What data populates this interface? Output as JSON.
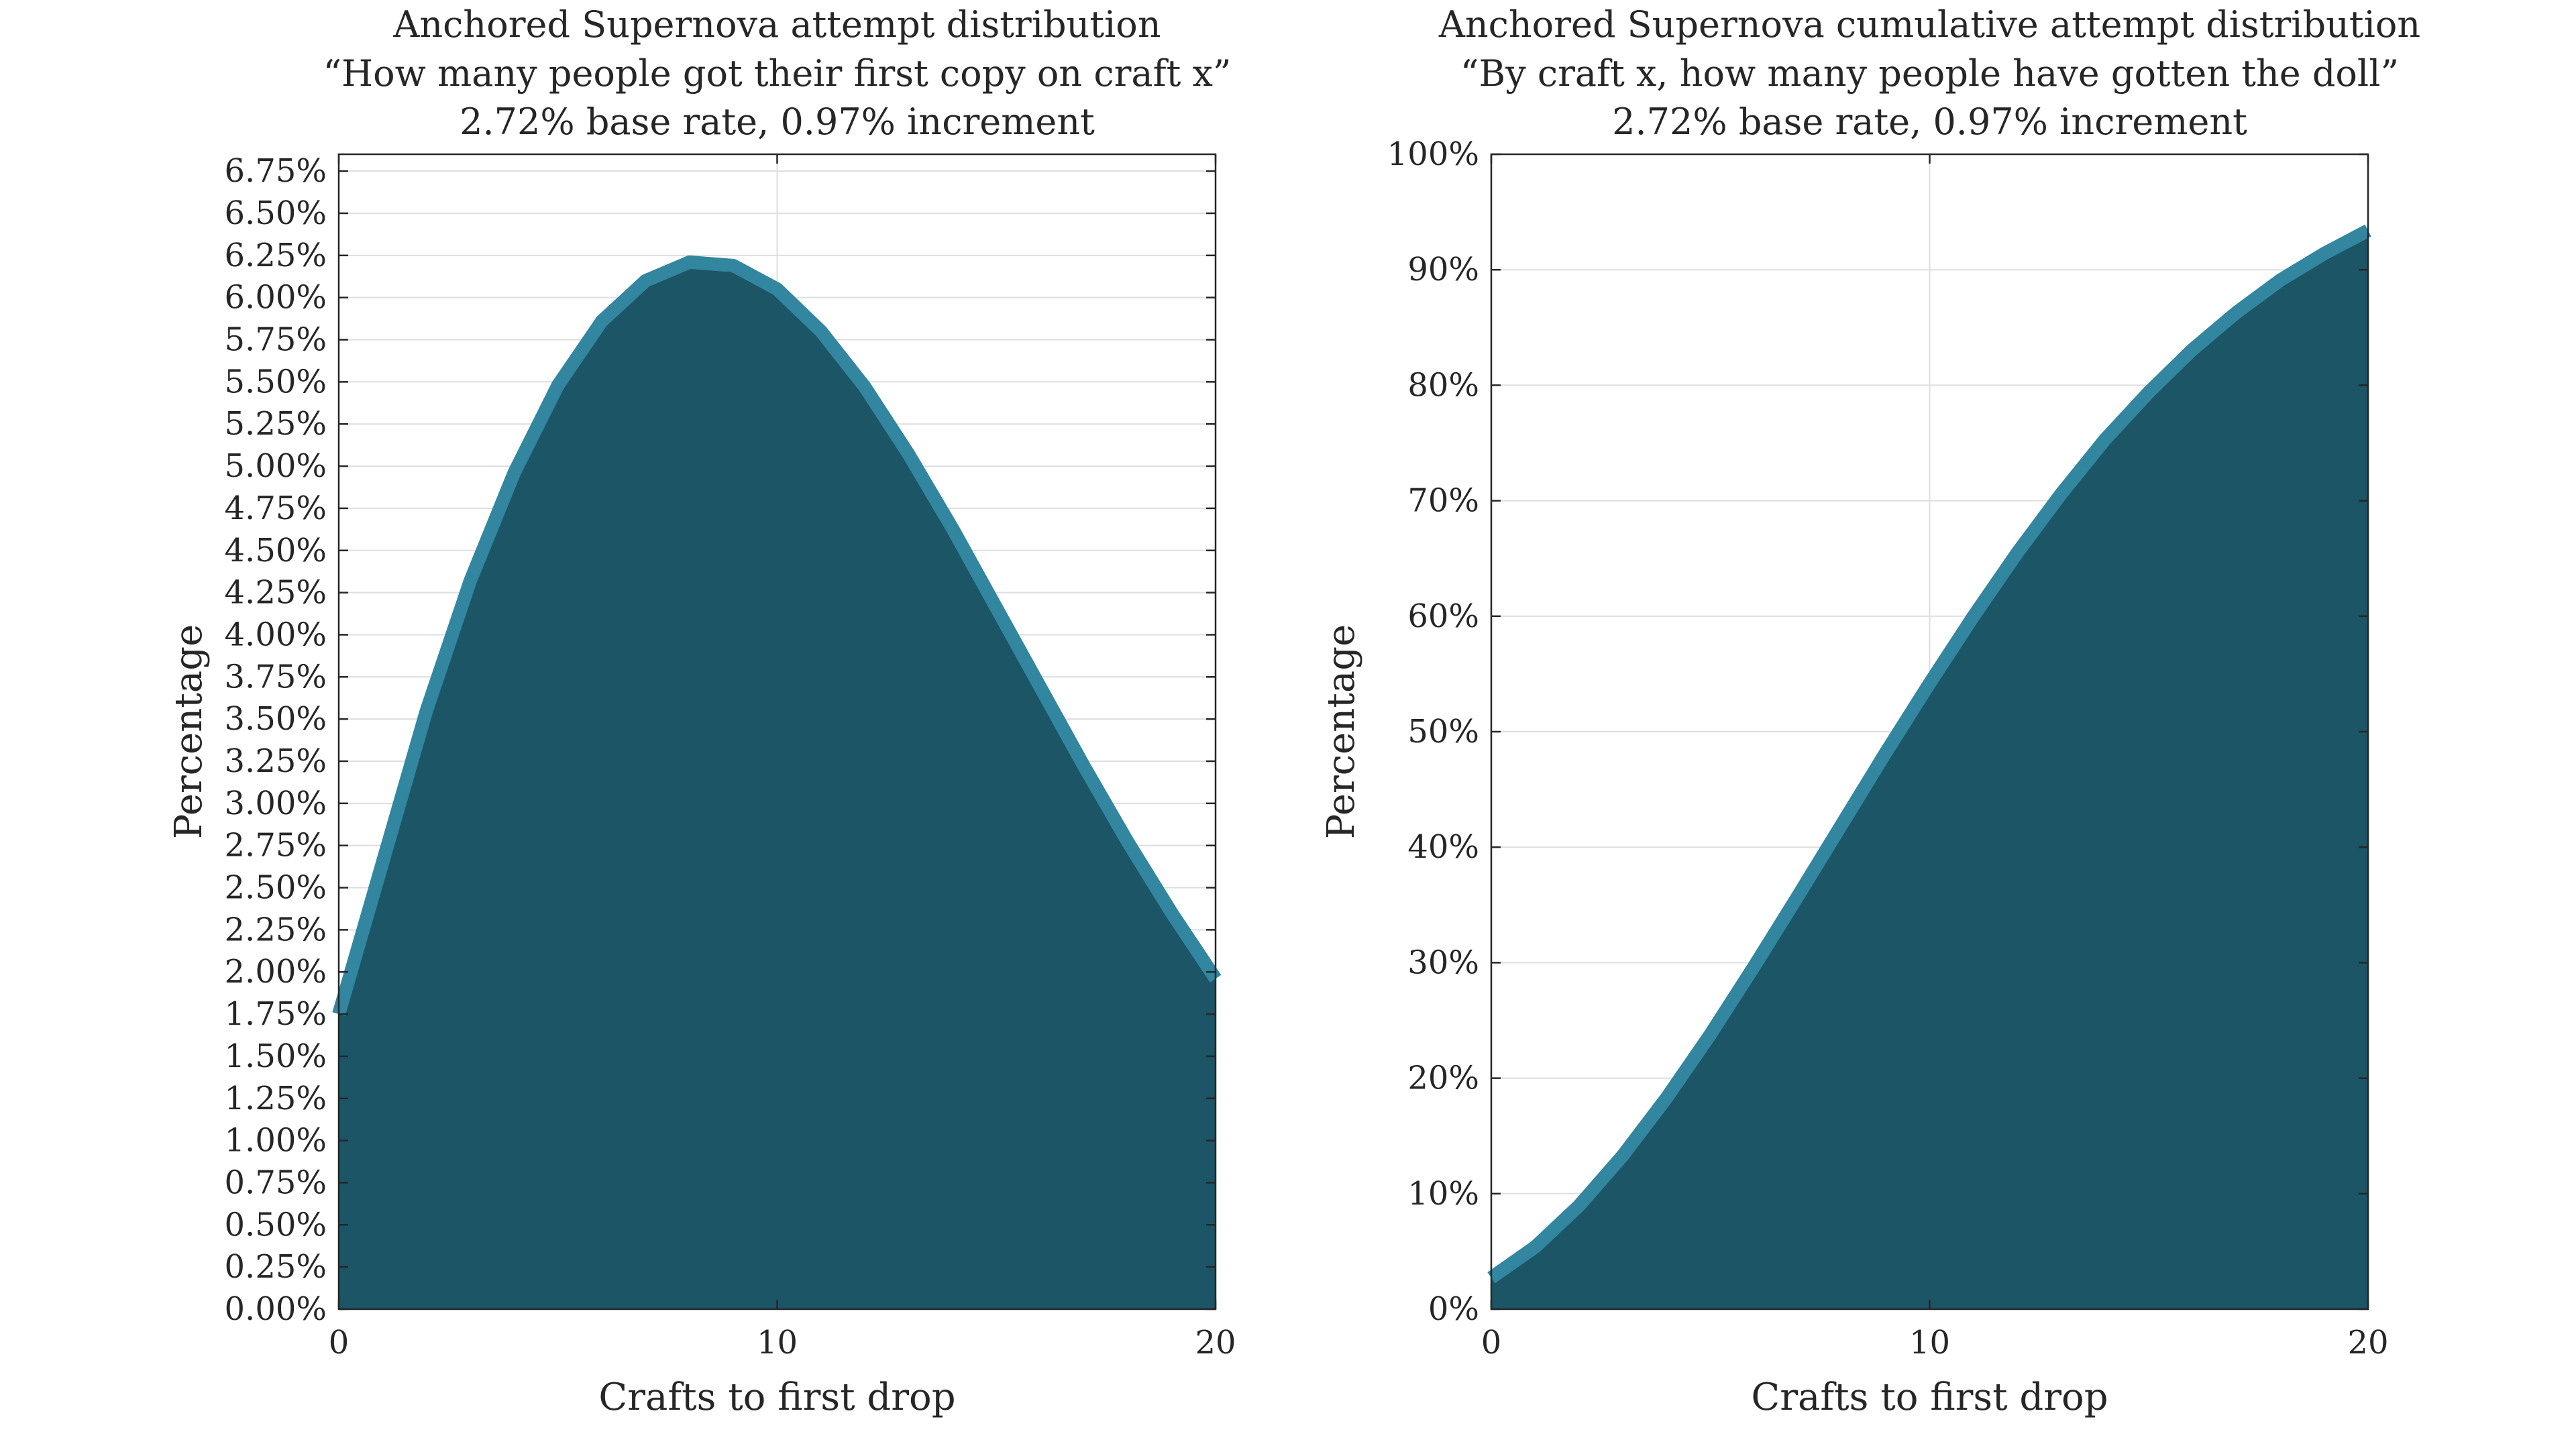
{
  "colors": {
    "fill": "#1b5566",
    "line": "#32869f",
    "grid": "#dedede",
    "axis": "#262626",
    "background": "#ffffff"
  },
  "chart_data": [
    {
      "type": "area",
      "title": [
        "Anchored Supernova attempt distribution",
        "“How many people got their first copy on craft x”",
        "2.72% base rate, 0.97% increment"
      ],
      "xlabel": "Crafts to first drop",
      "ylabel": "Percentage",
      "xlim": [
        0,
        20
      ],
      "ylim": [
        0,
        6.85
      ],
      "x_ticks": [
        "0",
        "10",
        "20"
      ],
      "x_tick_values": [
        0,
        10,
        20
      ],
      "y_ticks": [
        "0.00%",
        "0.25%",
        "0.50%",
        "0.75%",
        "1.00%",
        "1.25%",
        "1.50%",
        "1.75%",
        "2.00%",
        "2.25%",
        "2.50%",
        "2.75%",
        "3.00%",
        "3.25%",
        "3.50%",
        "3.75%",
        "4.00%",
        "4.25%",
        "4.50%",
        "4.75%",
        "5.00%",
        "5.25%",
        "5.50%",
        "5.75%",
        "6.00%",
        "6.25%",
        "6.50%",
        "6.75%"
      ],
      "y_tick_values": [
        0,
        0.25,
        0.5,
        0.75,
        1.0,
        1.25,
        1.5,
        1.75,
        2.0,
        2.25,
        2.5,
        2.75,
        3.0,
        3.25,
        3.5,
        3.75,
        4.0,
        4.25,
        4.5,
        4.75,
        5.0,
        5.25,
        5.5,
        5.75,
        6.0,
        6.25,
        6.5,
        6.75
      ],
      "grid": true,
      "x": [
        0,
        1,
        2,
        3,
        4,
        5,
        6,
        7,
        8,
        9,
        10,
        11,
        12,
        13,
        14,
        15,
        16,
        17,
        18,
        19,
        20
      ],
      "values": [
        1.75,
        2.65,
        3.55,
        4.32,
        4.96,
        5.48,
        5.86,
        6.1,
        6.21,
        6.19,
        6.05,
        5.8,
        5.47,
        5.07,
        4.63,
        4.16,
        3.69,
        3.22,
        2.77,
        2.35,
        1.96
      ]
    },
    {
      "type": "area",
      "title": [
        "Anchored Supernova cumulative attempt distribution",
        "“By craft x, how many people have gotten the doll”",
        "2.72% base rate, 0.97% increment"
      ],
      "xlabel": "Crafts to first drop",
      "ylabel": "Percentage",
      "xlim": [
        0,
        20
      ],
      "ylim": [
        0,
        100
      ],
      "x_ticks": [
        "0",
        "10",
        "20"
      ],
      "x_tick_values": [
        0,
        10,
        20
      ],
      "y_ticks": [
        "0%",
        "10%",
        "20%",
        "30%",
        "40%",
        "50%",
        "60%",
        "70%",
        "80%",
        "90%",
        "100%"
      ],
      "y_tick_values": [
        0,
        10,
        20,
        30,
        40,
        50,
        60,
        70,
        80,
        90,
        100
      ],
      "grid": true,
      "x": [
        0,
        1,
        2,
        3,
        4,
        5,
        6,
        7,
        8,
        9,
        10,
        11,
        12,
        13,
        14,
        15,
        16,
        17,
        18,
        19,
        20
      ],
      "values": [
        2.72,
        5.38,
        8.95,
        13.3,
        18.3,
        23.8,
        29.7,
        35.8,
        42.0,
        48.2,
        54.2,
        60.0,
        65.5,
        70.6,
        75.3,
        79.4,
        83.1,
        86.3,
        89.1,
        91.4,
        93.4
      ]
    }
  ]
}
